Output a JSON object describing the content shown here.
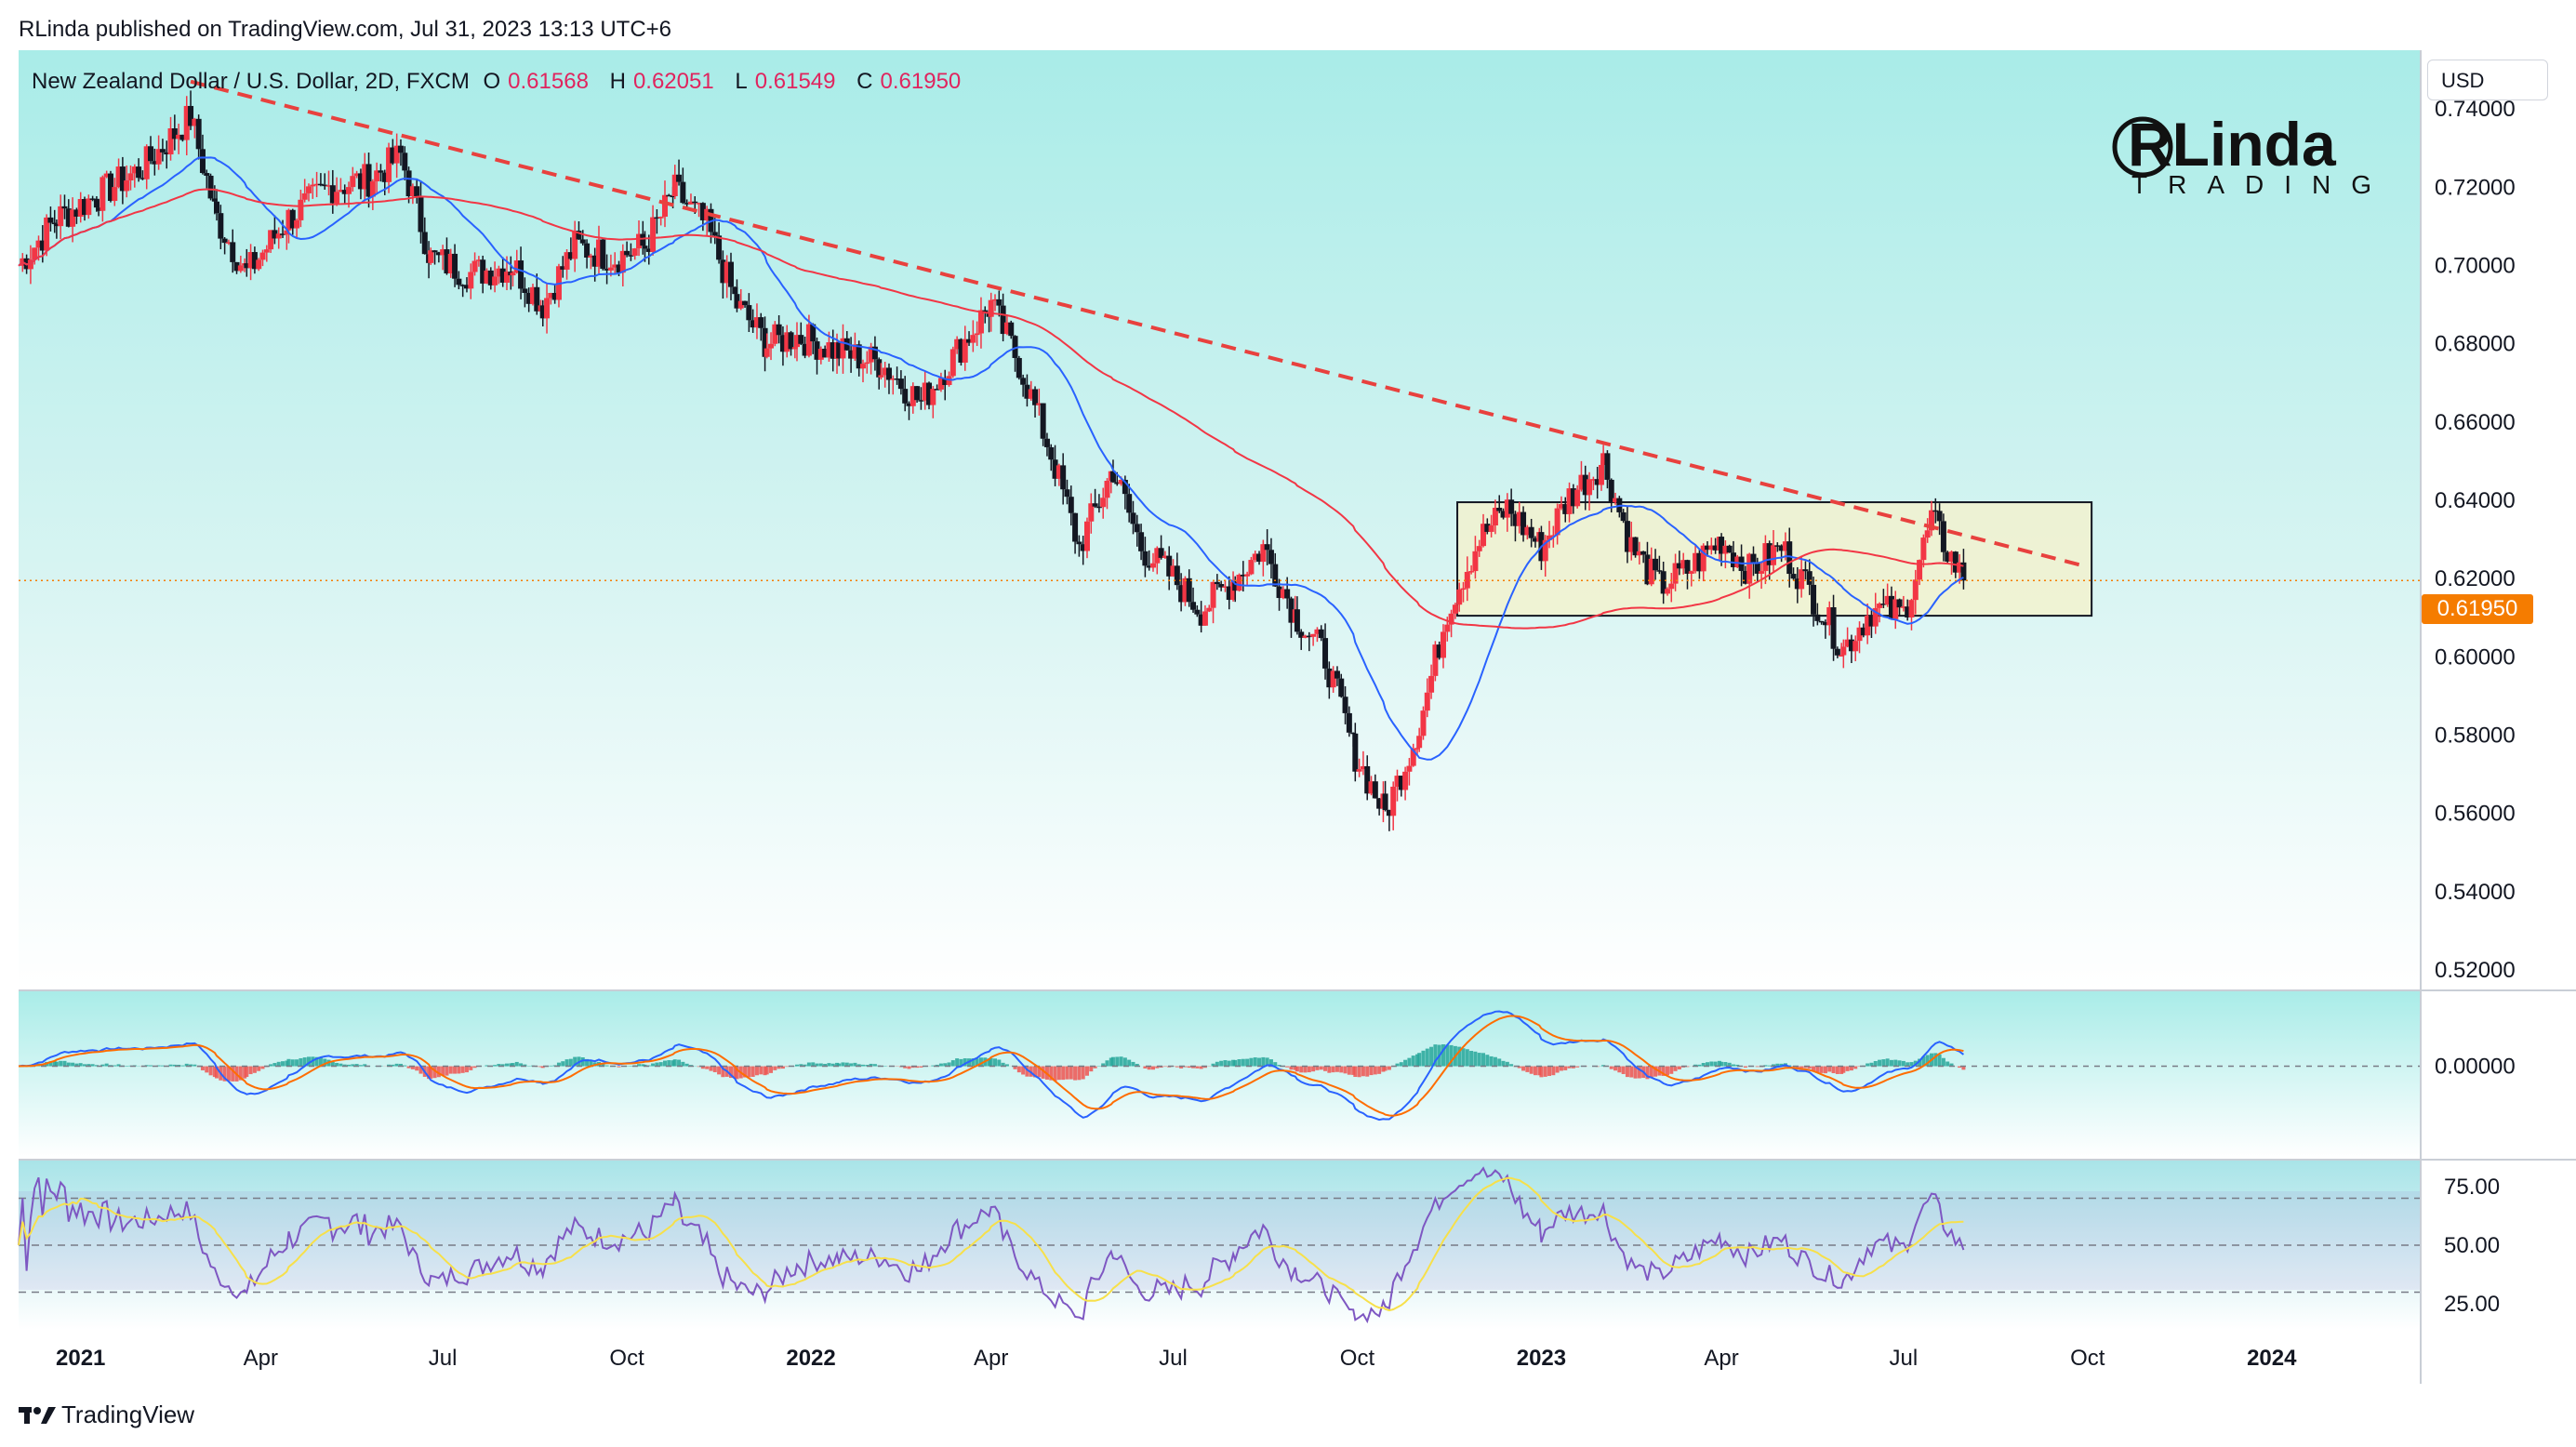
{
  "header": {
    "published": "RLinda published on TradingView.com, Jul 31, 2023 13:13 UTC+6"
  },
  "legend": {
    "symbol": "New Zealand Dollar / U.S. Dollar, 2D, FXCM",
    "o_label": "O",
    "o": "0.61568",
    "h_label": "H",
    "h": "0.62051",
    "l_label": "L",
    "l": "0.61549",
    "c_label": "C",
    "c": "0.61950"
  },
  "currency": "USD",
  "last_price": "0.61950",
  "logo": {
    "line1": "RLinda",
    "line2": "TRADING"
  },
  "footer": {
    "brand": "TradingView"
  },
  "colors": {
    "up": "#f23645",
    "down": "#131722",
    "sma_fast": "#2962ff",
    "sma_slow": "#f23645",
    "trendline": "#e8413e",
    "box_fill": "#f5f1c9",
    "macd": "#2962ff",
    "signal": "#ff6d00",
    "hist_pos": "#26a69a",
    "hist_neg": "#ef5350",
    "rsi": "#7e57c2",
    "rsi_ma": "#f7e04a",
    "price_tag": "#f57c00"
  },
  "chart_data": [
    {
      "type": "candlestick",
      "title": "New Zealand Dollar / U.S. Dollar, 2D, FXCM",
      "ylim": [
        0.515,
        0.755
      ],
      "y_ticks": [
        "0.74000",
        "0.72000",
        "0.70000",
        "0.68000",
        "0.66000",
        "0.64000",
        "0.62000",
        "0.60000",
        "0.58000",
        "0.56000",
        "0.54000",
        "0.52000"
      ],
      "x_ticks": [
        "2021",
        "Apr",
        "Jul",
        "Oct",
        "2022",
        "Apr",
        "Jul",
        "Oct",
        "2023",
        "Apr",
        "Jul",
        "Oct",
        "2024"
      ],
      "x_range": [
        "2020-12-01",
        "2024-03-15"
      ],
      "series_points": {
        "dates": [
          "2020-12-01",
          "2020-12-20",
          "2021-01-10",
          "2021-02-01",
          "2021-02-25",
          "2021-03-10",
          "2021-03-25",
          "2021-04-15",
          "2021-05-05",
          "2021-05-25",
          "2021-06-10",
          "2021-06-25",
          "2021-07-15",
          "2021-08-05",
          "2021-08-20",
          "2021-09-05",
          "2021-09-25",
          "2021-10-10",
          "2021-10-25",
          "2021-11-10",
          "2021-11-25",
          "2021-12-10",
          "2021-12-25",
          "2022-01-15",
          "2022-02-05",
          "2022-02-25",
          "2022-03-15",
          "2022-04-01",
          "2022-04-15",
          "2022-05-01",
          "2022-05-15",
          "2022-06-01",
          "2022-06-15",
          "2022-07-01",
          "2022-07-15",
          "2022-08-01",
          "2022-08-15",
          "2022-09-01",
          "2022-09-15",
          "2022-09-30",
          "2022-10-15",
          "2022-11-01",
          "2022-11-15",
          "2022-12-01",
          "2022-12-15",
          "2023-01-01",
          "2023-01-15",
          "2023-02-01",
          "2023-02-15",
          "2023-03-01",
          "2023-03-15",
          "2023-04-01",
          "2023-04-15",
          "2023-05-01",
          "2023-05-15",
          "2023-06-01",
          "2023-06-15",
          "2023-07-01",
          "2023-07-15",
          "2023-07-31"
        ],
        "close": [
          0.7,
          0.712,
          0.718,
          0.725,
          0.738,
          0.712,
          0.698,
          0.712,
          0.72,
          0.722,
          0.728,
          0.702,
          0.698,
          0.7,
          0.69,
          0.705,
          0.702,
          0.705,
          0.719,
          0.71,
          0.69,
          0.68,
          0.682,
          0.678,
          0.675,
          0.665,
          0.678,
          0.69,
          0.675,
          0.652,
          0.628,
          0.648,
          0.628,
          0.62,
          0.612,
          0.62,
          0.628,
          0.61,
          0.6,
          0.575,
          0.56,
          0.582,
          0.612,
          0.63,
          0.638,
          0.628,
          0.641,
          0.65,
          0.628,
          0.618,
          0.622,
          0.63,
          0.622,
          0.628,
          0.617,
          0.602,
          0.612,
          0.611,
          0.635,
          0.6195
        ]
      },
      "sma_fast_name": "",
      "sma_slow_name": "",
      "trendline": {
        "from": [
          "2021-02-25",
          0.747
        ],
        "to": [
          "2023-10-01",
          0.623
        ]
      },
      "range_box": {
        "from": "2022-11-20",
        "to": "2023-10-03",
        "top": 0.6395,
        "bottom": 0.6105
      }
    },
    {
      "type": "macd",
      "y_ticks": [
        "0.00000"
      ],
      "ylim": [
        -0.022,
        0.018
      ]
    },
    {
      "type": "rsi",
      "y_ticks": [
        "75.00",
        "50.00",
        "25.00"
      ],
      "ylim": [
        14,
        86
      ],
      "bands": [
        70,
        50,
        30
      ]
    }
  ]
}
